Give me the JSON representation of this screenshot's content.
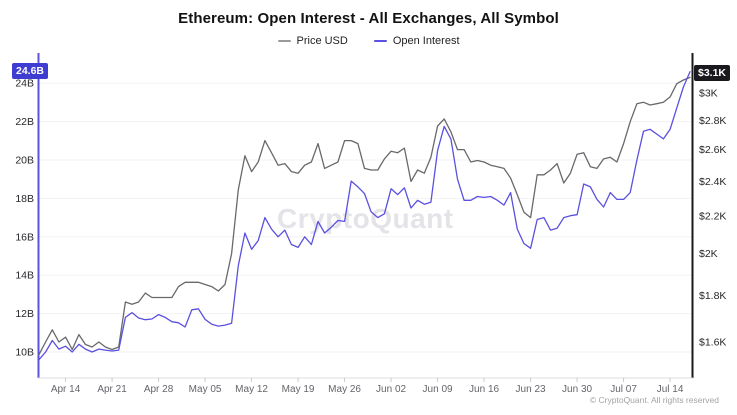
{
  "header": {
    "title": "Ethereum: Open Interest - All Exchanges, All Symbol"
  },
  "legend": {
    "items": [
      {
        "label": "Price USD",
        "color": "#9a9a9e"
      },
      {
        "label": "Open Interest",
        "color": "#5b50e0"
      }
    ]
  },
  "watermark": {
    "text": "CryptoQuant"
  },
  "footer": {
    "copyright": "© CryptoQuant. All rights reserved"
  },
  "chart_data": {
    "type": "line",
    "title": "Ethereum: Open Interest - All Exchanges, All Symbol",
    "grid": "horizontal-only",
    "legend_position": "top-center",
    "x_start_date": "Apr 10",
    "x_end_date": "Jul 17",
    "x_tick_labels": [
      "Apr 14",
      "Apr 21",
      "Apr 28",
      "May 05",
      "May 12",
      "May 19",
      "May 26",
      "Jun 02",
      "Jun 09",
      "Jun 16",
      "Jun 23",
      "Jun 30",
      "Jul 07",
      "Jul 14"
    ],
    "x_tick_day_index": [
      4,
      11,
      18,
      25,
      32,
      39,
      46,
      53,
      60,
      67,
      74,
      81,
      88,
      95
    ],
    "left_axis": {
      "label": "Open Interest",
      "unit": "billions USD",
      "scale": "linear",
      "ticks": [
        "24B",
        "22B",
        "20B",
        "18B",
        "16B",
        "14B",
        "12B",
        "10B"
      ],
      "tick_values": [
        24,
        22,
        20,
        18,
        16,
        14,
        12,
        10
      ],
      "current_value_label": "24.6B",
      "current_value": 24.6,
      "axis_color": "#5b50e0",
      "badge_color": "#3f3cd2"
    },
    "right_axis": {
      "label": "Price USD",
      "scale": "log",
      "ticks": [
        "$3K",
        "$2.8K",
        "$2.6K",
        "$2.4K",
        "$2.2K",
        "$2K",
        "$1.8K",
        "$1.6K"
      ],
      "tick_values": [
        3,
        2.8,
        2.6,
        2.4,
        2.2,
        2,
        1.8,
        1.6
      ],
      "current_value_label": "$3.1K",
      "current_value": 3.12,
      "axis_color": "#1a1a1e",
      "badge_color": "#1a1a1e"
    },
    "series": [
      {
        "name": "Price USD",
        "axis": "right",
        "unit": "K USD",
        "color": "#69696d",
        "values": [
          1.55,
          1.6,
          1.65,
          1.6,
          1.62,
          1.57,
          1.63,
          1.59,
          1.58,
          1.6,
          1.58,
          1.57,
          1.58,
          1.77,
          1.76,
          1.77,
          1.81,
          1.79,
          1.79,
          1.79,
          1.79,
          1.84,
          1.86,
          1.86,
          1.86,
          1.85,
          1.84,
          1.82,
          1.85,
          2.0,
          2.35,
          2.56,
          2.46,
          2.52,
          2.66,
          2.58,
          2.5,
          2.51,
          2.46,
          2.45,
          2.5,
          2.52,
          2.64,
          2.48,
          2.5,
          2.52,
          2.66,
          2.66,
          2.64,
          2.48,
          2.47,
          2.47,
          2.54,
          2.59,
          2.58,
          2.61,
          2.4,
          2.47,
          2.45,
          2.55,
          2.76,
          2.81,
          2.72,
          2.6,
          2.6,
          2.52,
          2.53,
          2.52,
          2.5,
          2.49,
          2.48,
          2.42,
          2.32,
          2.22,
          2.19,
          2.44,
          2.44,
          2.47,
          2.51,
          2.39,
          2.45,
          2.57,
          2.58,
          2.49,
          2.48,
          2.54,
          2.55,
          2.52,
          2.64,
          2.79,
          2.92,
          2.93,
          2.91,
          2.92,
          2.93,
          2.97,
          3.07,
          3.1,
          3.12
        ]
      },
      {
        "name": "Open Interest",
        "axis": "left",
        "unit": "B USD",
        "color": "#5b50e0",
        "values": [
          9.6,
          10.0,
          10.6,
          10.15,
          10.3,
          10.0,
          10.4,
          10.15,
          10.0,
          10.15,
          10.1,
          10.05,
          10.1,
          11.8,
          12.05,
          11.77,
          11.68,
          11.72,
          11.95,
          11.8,
          11.58,
          11.52,
          11.3,
          12.2,
          12.25,
          11.7,
          11.45,
          11.35,
          11.4,
          11.5,
          14.5,
          16.2,
          15.35,
          15.8,
          17.0,
          16.4,
          16.0,
          16.35,
          15.6,
          15.45,
          16.0,
          15.6,
          16.8,
          16.2,
          16.5,
          16.85,
          16.8,
          18.9,
          18.6,
          18.25,
          17.3,
          17.0,
          17.2,
          18.5,
          18.2,
          18.55,
          17.5,
          17.9,
          17.7,
          17.8,
          20.5,
          21.75,
          21.1,
          19.0,
          17.9,
          17.9,
          18.1,
          18.05,
          18.1,
          17.9,
          17.65,
          18.3,
          16.4,
          15.65,
          15.4,
          16.9,
          17.0,
          16.35,
          16.45,
          17.0,
          17.1,
          17.15,
          18.75,
          18.6,
          17.95,
          17.55,
          18.3,
          17.95,
          17.95,
          18.3,
          20.0,
          21.5,
          21.6,
          21.35,
          21.1,
          21.6,
          22.7,
          23.8,
          24.6
        ]
      }
    ]
  }
}
